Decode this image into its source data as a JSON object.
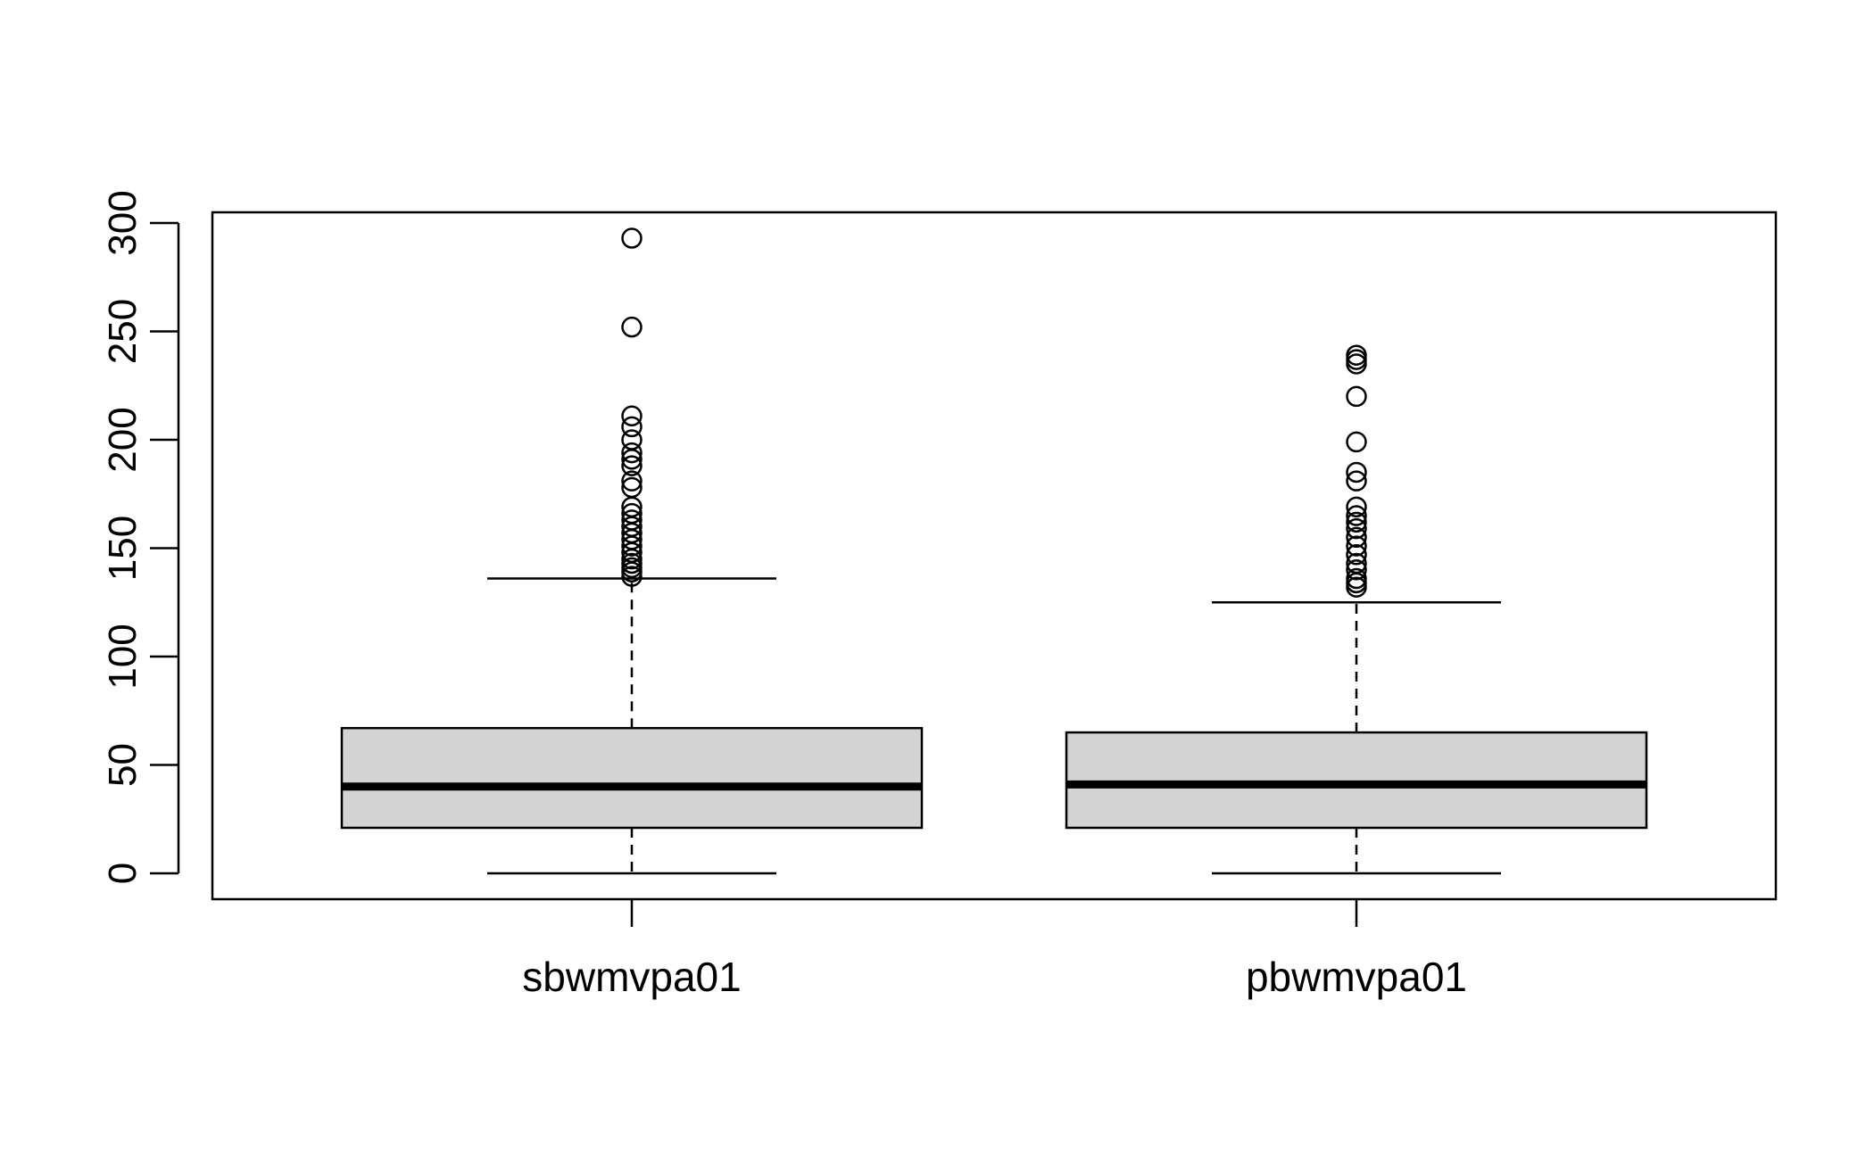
{
  "chart_data": {
    "type": "boxplot",
    "title": "",
    "xlabel": "",
    "ylabel": "",
    "ylim": [
      -12,
      305
    ],
    "yticks": [
      0,
      50,
      100,
      150,
      200,
      250,
      300
    ],
    "grid": false,
    "colors": {
      "box_fill": "#d3d3d3",
      "stroke": "#000000",
      "background": "#ffffff"
    },
    "categories": [
      "sbwmvpa01",
      "pbwmvpa01"
    ],
    "boxes": [
      {
        "name": "sbwmvpa01",
        "min": 0,
        "q1": 21,
        "median": 40,
        "q3": 67,
        "max": 136,
        "outliers": [
          137,
          139,
          141,
          143,
          145,
          148,
          151,
          154,
          157,
          160,
          163,
          166,
          169,
          178,
          181,
          188,
          191,
          194,
          200,
          206,
          211,
          252,
          293
        ]
      },
      {
        "name": "pbwmvpa01",
        "min": 0,
        "q1": 21,
        "median": 41,
        "q3": 65,
        "max": 125,
        "outliers": [
          132,
          134,
          136,
          140,
          143,
          147,
          151,
          155,
          159,
          162,
          165,
          169,
          181,
          185,
          199,
          220,
          235,
          237,
          239
        ]
      }
    ]
  }
}
